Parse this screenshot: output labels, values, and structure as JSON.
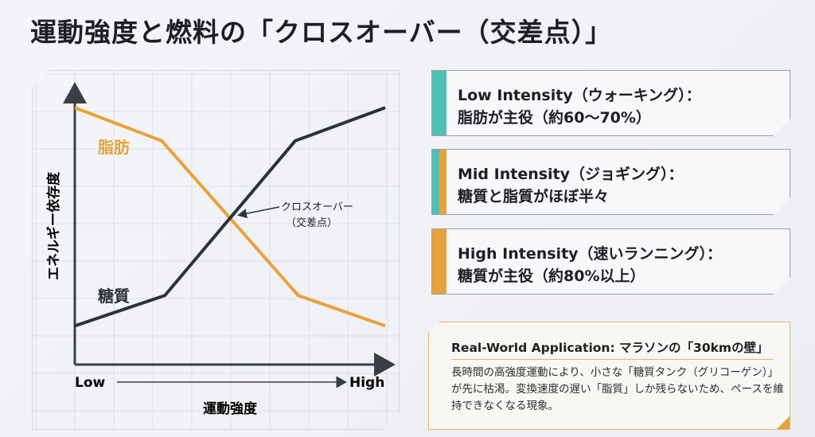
{
  "title": "運動強度と燃料の「クロスオーバー（交差点）」",
  "chart_data": {
    "type": "line",
    "title": "",
    "xlabel": "運動強度",
    "ylabel": "エネルギー依存度",
    "x_tick_labels": {
      "low": "Low",
      "high": "High"
    },
    "xlim": [
      0,
      100
    ],
    "ylim": [
      0,
      100
    ],
    "grid": true,
    "series": [
      {
        "name": "脂肪",
        "color": "#e8a23a",
        "x": [
          0,
          28,
          50,
          72,
          100
        ],
        "y": [
          93,
          81,
          53,
          25,
          14
        ]
      },
      {
        "name": "糖質",
        "color": "#2c313a",
        "x": [
          0,
          29,
          50,
          71,
          100
        ],
        "y": [
          14,
          25,
          53,
          81,
          93
        ]
      }
    ],
    "annotation": {
      "line1": "クロスオーバー",
      "line2": "（交差点）",
      "x": 50,
      "y": 53
    }
  },
  "cards": [
    {
      "line1": "Low Intensity（ウォーキング）：",
      "line2": "脂肪が主役（約60〜70%）",
      "colors": [
        "#4fc1b3"
      ]
    },
    {
      "line1": "Mid Intensity（ジョギング）：",
      "line2": "糖質と脂質がほぼ半々",
      "colors": [
        "#4fc1b3",
        "#e8a23a"
      ]
    },
    {
      "line1": "High Intensity（速いランニング）：",
      "line2": "糖質が主役（約80%以上）",
      "colors": [
        "#e8a23a"
      ]
    }
  ],
  "application": {
    "title": "Real-World Application: マラソンの「30kmの壁」",
    "body": "長時間の高強度運動により、小さな「糖質タンク（グリコーゲン）」が先に枯渇。変換速度の遅い「脂質」しか残らないため、ペースを維持できなくなる現象。"
  }
}
